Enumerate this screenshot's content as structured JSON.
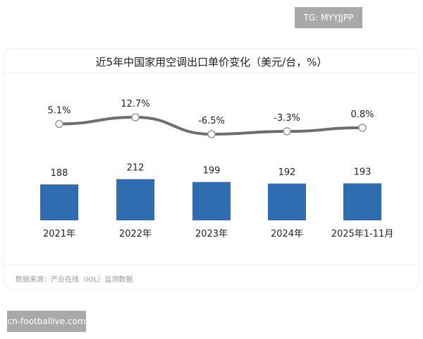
{
  "watermarks": {
    "top_right": "TG: MYYJJPP",
    "bottom_left": "cn-footballive.com"
  },
  "chart_data": {
    "type": "bar",
    "title": "近5年中国家用空调出口单价变化（美元/台，%）",
    "categories": [
      "2021年",
      "2022年",
      "2023年",
      "2024年",
      "2025年1-11月"
    ],
    "series": [
      {
        "type": "bar",
        "values": [
          188,
          212,
          199,
          192,
          193
        ],
        "color": "#2f6db0"
      },
      {
        "type": "line",
        "values": [
          5.1,
          12.7,
          -6.5,
          -3.3,
          0.8
        ],
        "labels": [
          "5.1%",
          "12.7%",
          "-6.5%",
          "-3.3%",
          "0.8%"
        ],
        "color": "#6e6e6e",
        "smooth": true
      }
    ],
    "ylim_bar": [
      0,
      230
    ],
    "ylim_line": [
      -15,
      25
    ],
    "grid": false,
    "source": "数据来源：产业在线（IOL）监测数据"
  }
}
